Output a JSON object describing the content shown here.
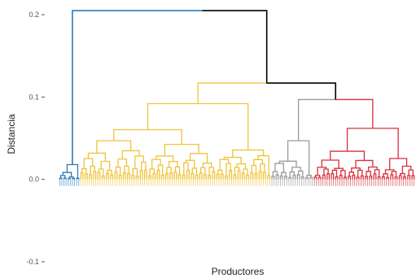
{
  "chart_data": {
    "type": "dendrogram",
    "xlabel": "Productores",
    "ylabel": "Distancia",
    "ylim": [
      -0.1,
      0.21
    ],
    "yticks": [
      {
        "value": 0.2,
        "label": "0.2"
      },
      {
        "value": 0.1,
        "label": "0.1"
      },
      {
        "value": 0.0,
        "label": "0.0"
      },
      {
        "value": -0.1,
        "label": "-0.1"
      }
    ],
    "grid": false,
    "colors": {
      "link": "#000000",
      "blue": "#2b7bb9",
      "yellow": "#f0c33c",
      "gray": "#9a9a9a",
      "red": "#d7303c"
    },
    "clusters": [
      {
        "color": "blue",
        "leaf_count": 10
      },
      {
        "color": "yellow",
        "leaf_count": 90
      },
      {
        "color": "gray",
        "leaf_count": 20
      },
      {
        "color": "red",
        "leaf_count": 48
      }
    ],
    "merges": {
      "root": 0.205,
      "blue_vs_rest": 0.205,
      "yellow_vs_grayred": 0.117,
      "gray_vs_red": 0.097,
      "yellow": 0.092,
      "gray": 0.097,
      "red": 0.097
    }
  }
}
